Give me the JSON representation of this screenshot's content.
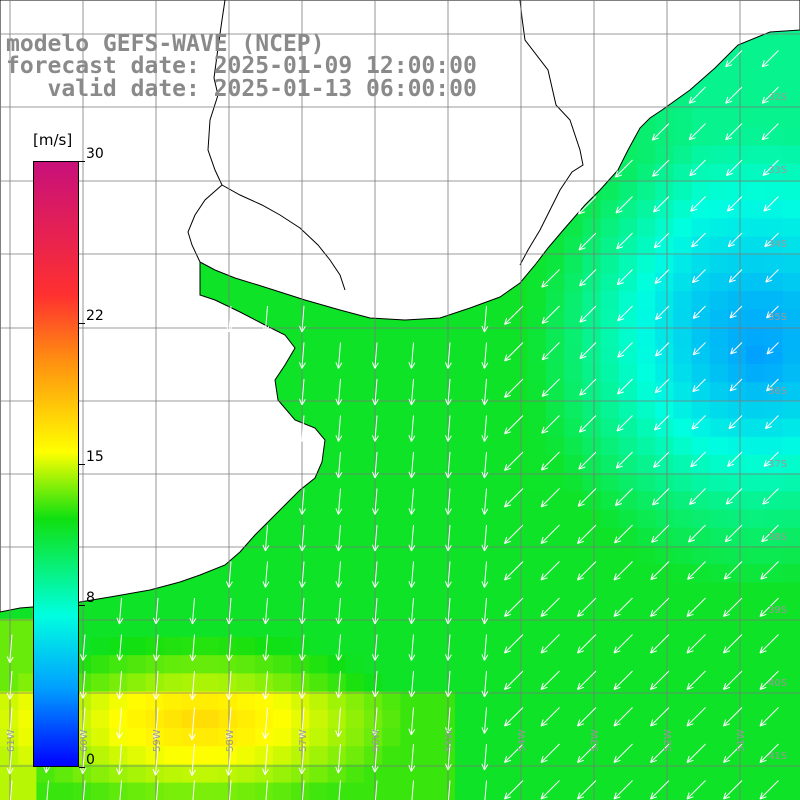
{
  "title": {
    "line1": "modelo GEFS-WAVE (NCEP)",
    "line2": "forecast date: 2025-01-09 12:00:00",
    "line3": "   valid date: 2025-01-13 06:00:00"
  },
  "colorbar": {
    "units": "[m/s]",
    "range": [
      0,
      30
    ],
    "ticks": [
      {
        "label": "30",
        "value": 30
      },
      {
        "label": "22",
        "value": 22
      },
      {
        "label": "15",
        "value": 15
      },
      {
        "label": "8",
        "value": 8
      },
      {
        "label": "0",
        "value": 0
      }
    ],
    "palette": [
      "#0000ff",
      "#00a0ff",
      "#00ffe0",
      "#10e010",
      "#ffff00",
      "#ff9010",
      "#ff3030",
      "#c8107a"
    ]
  },
  "map": {
    "region": "Rio de la Plata / South Atlantic",
    "lat_range": [
      -41,
      -31
    ],
    "lon_range": [
      -62,
      -51
    ],
    "lat_labels": [
      "32S",
      "33S",
      "34S",
      "35S",
      "36S",
      "37S",
      "38S",
      "39S",
      "40S",
      "41S"
    ],
    "lon_labels": [
      "61W",
      "60W",
      "59W",
      "58W",
      "57W",
      "56W",
      "55W",
      "54W",
      "53W",
      "52W",
      "51W"
    ],
    "wind_direction": "from north-east",
    "land_color": "#ffffff",
    "coastline_color": "#000000"
  }
}
